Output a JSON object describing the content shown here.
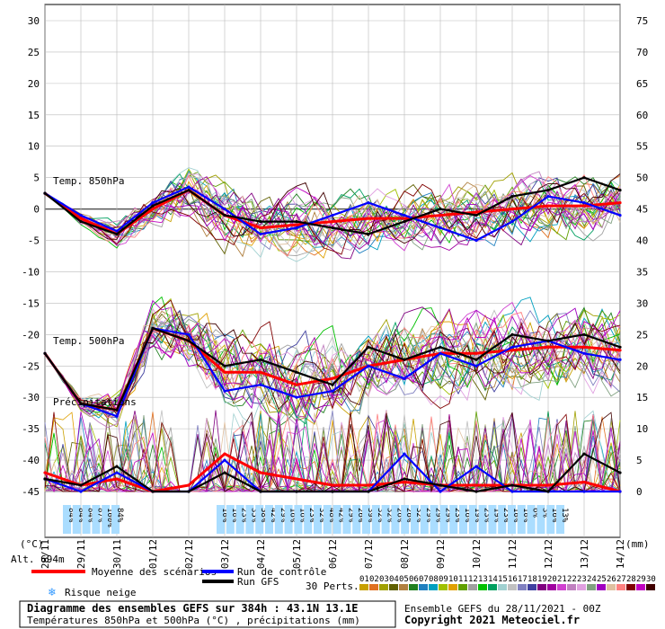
{
  "chart_data": {
    "type": "line",
    "x_dates": [
      "28/11",
      "29/11",
      "30/11",
      "01/12",
      "02/12",
      "03/12",
      "04/12",
      "05/12",
      "06/12",
      "07/12",
      "08/12",
      "09/12",
      "10/12",
      "11/12",
      "12/12",
      "13/12",
      "14/12"
    ],
    "x_tick_labels": [
      "28/11",
      "29/11",
      "30/11",
      "01/12",
      "02/12",
      "03/12",
      "04/12",
      "05/12",
      "06/12",
      "07/12",
      "08/12",
      "09/12",
      "10/12",
      "11/12",
      "12/12",
      "13/12",
      "14/12"
    ],
    "left_axis": {
      "unit": "(°C)",
      "ticks": [
        30,
        25,
        20,
        15,
        10,
        5,
        0,
        -5,
        -10,
        -15,
        -20,
        -25,
        -30,
        -35,
        -40,
        -45
      ],
      "range": [
        -45,
        30
      ]
    },
    "right_axis": {
      "unit": "(mm)",
      "ticks": [
        75,
        70,
        65,
        60,
        55,
        50,
        45,
        40,
        35,
        30,
        25,
        20,
        15,
        10,
        5,
        0
      ],
      "range": [
        0,
        75
      ]
    },
    "panel_labels": {
      "t850": "Temp. 850hPa",
      "t500": "Temp. 500hPa",
      "precip": "Précipitations"
    },
    "series": [
      {
        "name": "Moyenne des scénarios",
        "color": "#ff0000",
        "panel": "t850",
        "values": [
          2.5,
          -1.5,
          -4,
          0,
          3,
          -1,
          -3,
          -2.5,
          -2,
          -1.5,
          -1.5,
          -1,
          -0.5,
          0,
          0.5,
          0.5,
          1
        ]
      },
      {
        "name": "Run de contrôle",
        "color": "#0000ff",
        "panel": "t850",
        "values": [
          2.5,
          -1,
          -3.5,
          1,
          3.5,
          0,
          -4,
          -3,
          -1,
          1,
          -1,
          -3,
          -5,
          -2,
          2,
          1,
          -1
        ]
      },
      {
        "name": "Run GFS",
        "color": "#000000",
        "panel": "t850",
        "values": [
          2.5,
          -2,
          -4,
          0.5,
          3,
          -1,
          -2,
          -2,
          -3,
          -4,
          -2,
          0,
          -1,
          2,
          3,
          5,
          3
        ]
      },
      {
        "name": "Moyenne des scénarios",
        "color": "#ff0000",
        "panel": "t500",
        "values": [
          -23,
          -31,
          -32,
          -19,
          -21,
          -26,
          -26,
          -28,
          -27,
          -25,
          -24,
          -23,
          -23,
          -22.5,
          -22,
          -22,
          -22.5
        ]
      },
      {
        "name": "Run de contrôle",
        "color": "#0000ff",
        "panel": "t500",
        "values": [
          -23,
          -31,
          -33,
          -19,
          -20,
          -29,
          -28,
          -30,
          -29,
          -25,
          -27,
          -23,
          -25,
          -22,
          -21,
          -23,
          -24
        ]
      },
      {
        "name": "Run GFS",
        "color": "#000000",
        "panel": "t500",
        "values": [
          -23,
          -31,
          -32,
          -19,
          -21,
          -25,
          -24,
          -26,
          -28,
          -22,
          -24,
          -22,
          -24,
          -20,
          -21,
          -20,
          -22
        ]
      },
      {
        "name": "Moyenne des scénarios",
        "color": "#ff0000",
        "panel": "precip",
        "values": [
          3,
          1,
          2,
          0,
          1,
          6,
          3,
          2,
          1,
          1,
          1.5,
          1,
          1,
          1,
          1,
          1.5,
          0
        ]
      },
      {
        "name": "Run de contrôle",
        "color": "#0000ff",
        "panel": "precip",
        "values": [
          2,
          0,
          3,
          0,
          0,
          5,
          0,
          0,
          0,
          0,
          6,
          0,
          4,
          0,
          0,
          0,
          0
        ]
      },
      {
        "name": "Run GFS",
        "color": "#000000",
        "panel": "precip",
        "values": [
          2,
          1,
          4,
          0,
          0,
          3,
          0,
          0,
          0,
          0,
          2,
          1,
          0,
          1,
          0,
          6,
          3
        ]
      }
    ],
    "snow_risk_pct": [
      "84%",
      "84%",
      "84%",
      "87%",
      "100%",
      "84%",
      "10%",
      "10%",
      "23%",
      "35%",
      "58%",
      "42%",
      "29%",
      "16%",
      "16%",
      "23%",
      "32%",
      "48%",
      "42%",
      "29%",
      "26%",
      "39%",
      "32%",
      "32%",
      "26%",
      "26%",
      "32%",
      "29%",
      "29%",
      "29%",
      "23%",
      "16%",
      "19%",
      "23%",
      "19%",
      "23%",
      "10%",
      "10%",
      "6%",
      "3%",
      "16%",
      "13%"
    ],
    "altitude": "Alt. 694m",
    "perturbations_label": "30 Perts.",
    "perturbation_ids": [
      "01",
      "02",
      "03",
      "04",
      "05",
      "06",
      "07",
      "08",
      "09",
      "10",
      "11",
      "12",
      "13",
      "14",
      "15",
      "16",
      "17",
      "18",
      "19",
      "20",
      "21",
      "22",
      "23",
      "24",
      "25",
      "26",
      "27",
      "28",
      "29",
      "30"
    ],
    "perturbation_colors": [
      "#c8a000",
      "#e07020",
      "#a0a000",
      "#606000",
      "#b08040",
      "#208020",
      "#2080c0",
      "#00a0c0",
      "#a0c000",
      "#e0a000",
      "#60a000",
      "#a0a0a0",
      "#00c000",
      "#00a060",
      "#a0d0d0",
      "#c0c0c0",
      "#8080c0",
      "#4040a0",
      "#800080",
      "#a000a0",
      "#d040d0",
      "#c080c0",
      "#e0a0e0",
      "#80a080",
      "#a000c0",
      "#e0c0a0",
      "#ff8080",
      "#800000",
      "#c000c0",
      "#400000"
    ]
  },
  "legend": {
    "mean": "Moyenne des scénarios",
    "control": "Run de contrôle",
    "gfs": "Run GFS",
    "snow": "Risque neige"
  },
  "footer": {
    "title_prefix": "Diagramme des ensembles GEFS sur 384h :",
    "coords": "43.1N 13.1E",
    "subtitle": "Températures 850hPa et 500hPa (°C) , précipitations (mm)",
    "run": "Ensemble GEFS du 28/11/2021 - 00Z",
    "copyright": "Copyright 2021 Meteociel.fr"
  },
  "colors": {
    "mean": "#ff0000",
    "control": "#0000ff",
    "gfs": "#000000",
    "grid": "#bbbbbb",
    "snow": "#aaddff"
  }
}
